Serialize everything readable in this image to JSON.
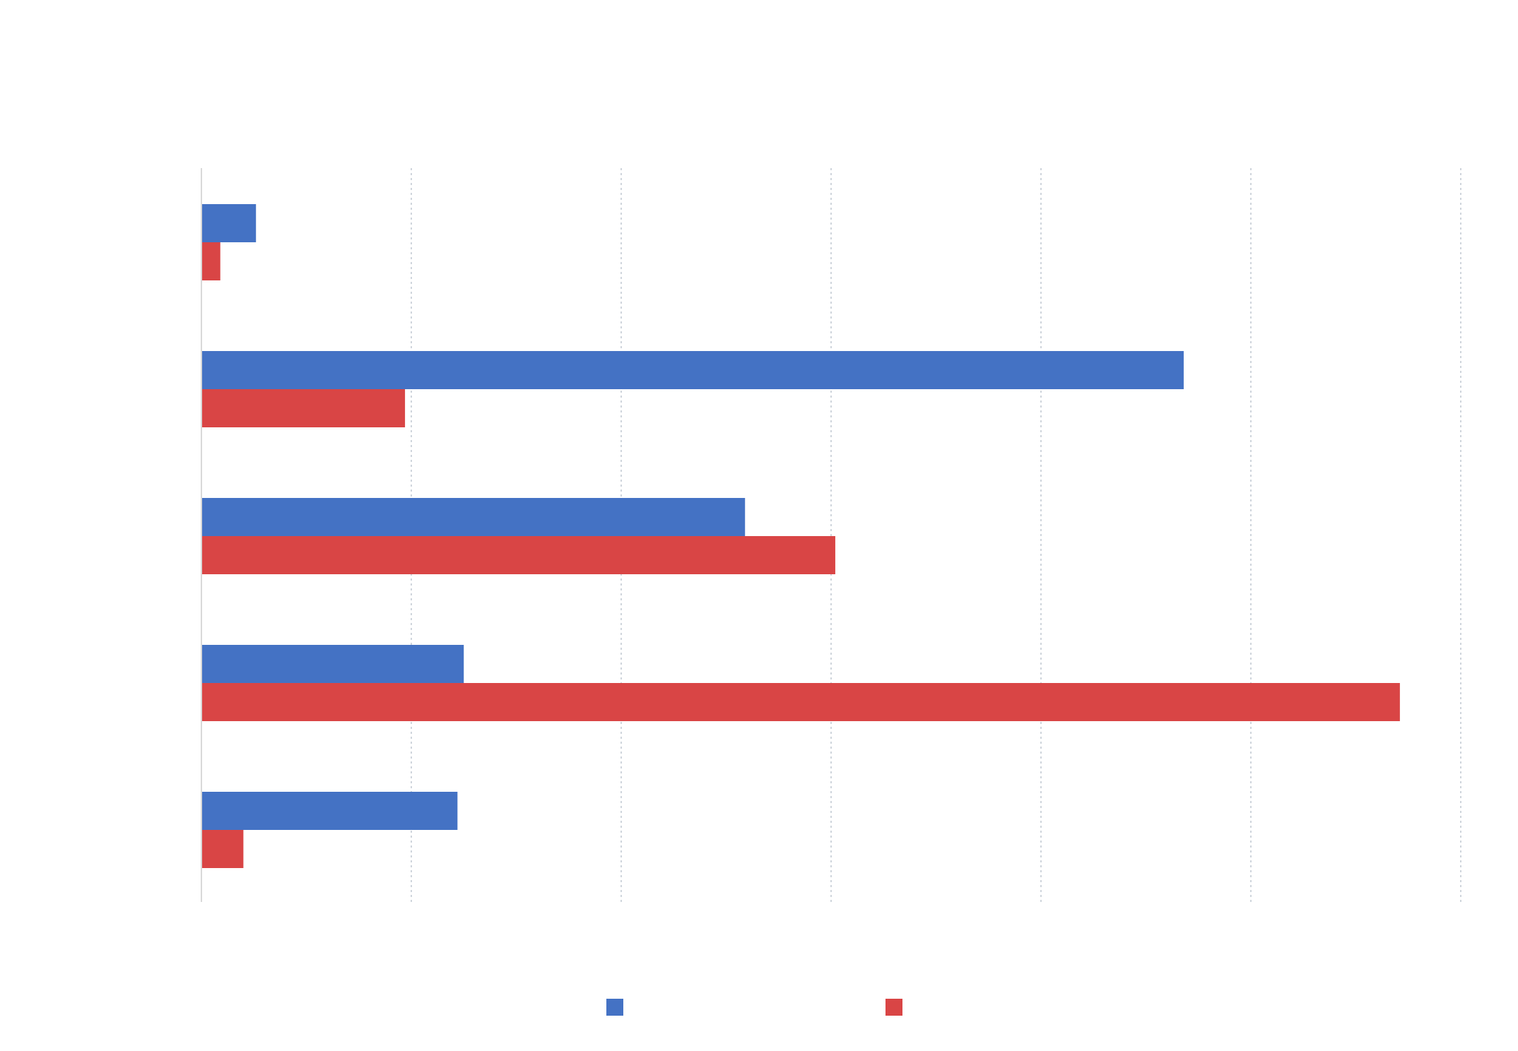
{
  "chart_data": {
    "type": "bar",
    "orientation": "horizontal",
    "title": "",
    "xlabel": "",
    "ylabel": "",
    "categories": [
      "",
      "",
      "",
      "",
      ""
    ],
    "series": [
      {
        "values": [
          0.26,
          4.68,
          2.59,
          1.25,
          1.22
        ],
        "color": "#4472c4"
      },
      {
        "values": [
          0.09,
          0.97,
          3.02,
          5.71,
          0.2
        ],
        "color": "#d94545"
      }
    ],
    "xlim": [
      0,
      6
    ],
    "xticks": [
      0,
      1,
      2,
      3,
      4,
      5,
      6
    ],
    "grid": true,
    "legend_position": "bottom"
  },
  "colors": {
    "background": "#ffffff",
    "axis": "#d9d9d9",
    "grid": "#cfd5dc"
  }
}
